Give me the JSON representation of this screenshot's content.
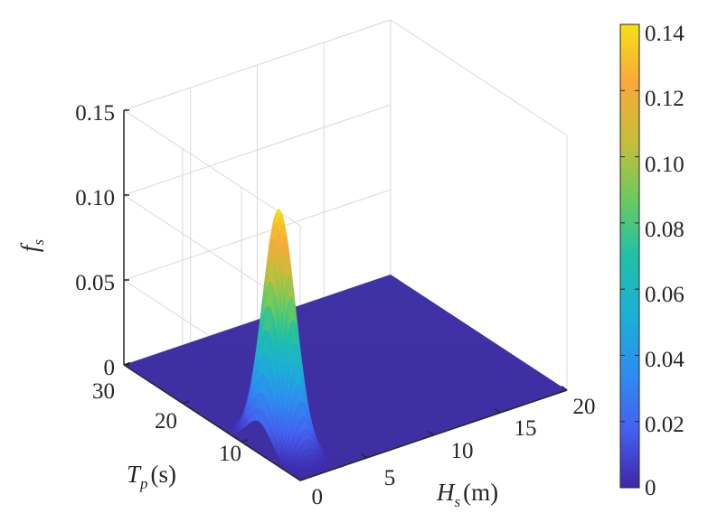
{
  "chart_data": {
    "type": "surface3d",
    "title": "",
    "x_axis": {
      "symbol": "H",
      "subscript": "s",
      "unit": "(m)",
      "range": [
        0,
        20
      ],
      "ticks": [
        {
          "value": 5,
          "label": "5"
        },
        {
          "value": 10,
          "label": "10"
        },
        {
          "value": 15,
          "label": "15"
        },
        {
          "value": 20,
          "label": "20"
        }
      ]
    },
    "y_axis": {
      "symbol": "T",
      "subscript": "p",
      "unit": "(s)",
      "range": [
        0,
        30
      ],
      "ticks": [
        {
          "value": 0,
          "label": "0"
        },
        {
          "value": 10,
          "label": "10"
        },
        {
          "value": 20,
          "label": "20"
        },
        {
          "value": 30,
          "label": "30"
        }
      ]
    },
    "z_axis": {
      "symbol": "f",
      "subscript": "s",
      "range": [
        0,
        0.15
      ],
      "ticks": [
        {
          "value": 0,
          "label": "0"
        },
        {
          "value": 0.05,
          "label": "0.05"
        },
        {
          "value": 0.1,
          "label": "0.10"
        },
        {
          "value": 0.15,
          "label": "0.15"
        }
      ]
    },
    "surface": {
      "peak_location": {
        "Hs": 1.5,
        "Tp": 7
      },
      "peak_value": 0.14,
      "spread_Hs": 0.75,
      "spread_Tp": 2.2,
      "baseline_value": 0
    },
    "colorbar": {
      "range": [
        0,
        0.14
      ],
      "ticks": [
        {
          "value": 0.14,
          "label": "0.14"
        },
        {
          "value": 0.12,
          "label": "0.12"
        },
        {
          "value": 0.1,
          "label": "0.10"
        },
        {
          "value": 0.08,
          "label": "0.08"
        },
        {
          "value": 0.06,
          "label": "0.06"
        },
        {
          "value": 0.04,
          "label": "0.04"
        },
        {
          "value": 0.02,
          "label": "0.02"
        },
        {
          "value": 0,
          "label": "0"
        }
      ],
      "colormap": [
        "#3e26a8",
        "#4560f0",
        "#2d8ef0",
        "#1cb0d5",
        "#22bfa6",
        "#6ccb5e",
        "#c8bd3a",
        "#f9a93b",
        "#f4e114"
      ]
    },
    "grid": true
  }
}
